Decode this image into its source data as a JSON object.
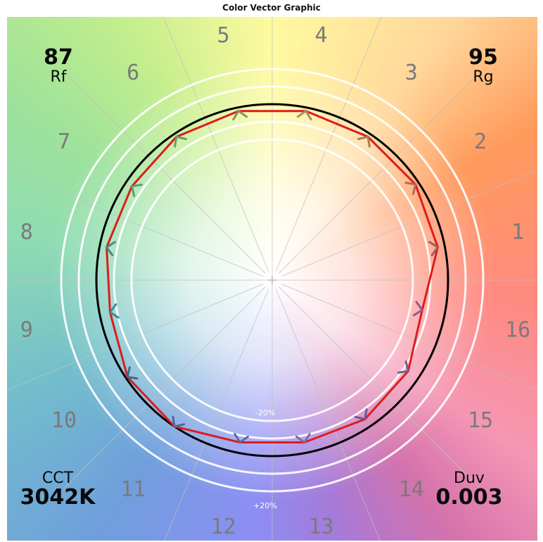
{
  "chart_data": {
    "type": "radar",
    "title": "Color Vector Graphic",
    "hue_bin_labels": [
      "1",
      "2",
      "3",
      "4",
      "5",
      "6",
      "7",
      "8",
      "9",
      "10",
      "11",
      "12",
      "13",
      "14",
      "15",
      "16"
    ],
    "reference_circle_ratio": 1.0,
    "ring_ratios": [
      0.8,
      0.9,
      1.1,
      1.2
    ],
    "ring_labels": {
      "inner": "-20%",
      "outer": "+20%"
    },
    "test_source_ratios": [
      0.96,
      0.98,
      0.98,
      0.98,
      0.98,
      0.98,
      0.96,
      0.96,
      0.94,
      0.99,
      1.0,
      0.94,
      0.94,
      0.95,
      0.93,
      0.87
    ],
    "arrow_colors": [
      "#a35a5a",
      "#b86a50",
      "#b07a50",
      "#a89060",
      "#8a9060",
      "#6e9a6a",
      "#5a9a7a",
      "#4a8a82",
      "#4a8490",
      "#3a6a8a",
      "#4a6a98",
      "#5a6aa0",
      "#7a6aa8",
      "#6a5a98",
      "#7a5a90",
      "#9a5a88"
    ],
    "colors": {
      "test_polygon": "#dd1c1c",
      "reference": "#000000",
      "rings": "#ffffff",
      "spokes": "#c0c0c0",
      "hue_labels": "#7a7a7a"
    },
    "metrics": {
      "rf": {
        "value": "87",
        "label": "Rf"
      },
      "rg": {
        "value": "95",
        "label": "Rg"
      },
      "cct": {
        "label": "CCT",
        "value": "3042K"
      },
      "duv": {
        "label": "Duv",
        "value": "0.003"
      }
    }
  }
}
